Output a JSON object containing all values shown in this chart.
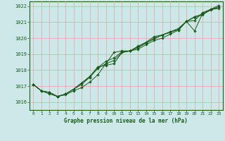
{
  "bg_color": "#cce8e8",
  "grid_color": "#e8a0a0",
  "line_color": "#1a5c1a",
  "title": "Graphe pression niveau de la mer (hPa)",
  "xlim": [
    -0.5,
    23.5
  ],
  "ylim": [
    1015.5,
    1022.3
  ],
  "yticks": [
    1016,
    1017,
    1018,
    1019,
    1020,
    1021,
    1022
  ],
  "xticks": [
    0,
    1,
    2,
    3,
    4,
    5,
    6,
    7,
    8,
    9,
    10,
    11,
    12,
    13,
    14,
    15,
    16,
    17,
    18,
    19,
    20,
    21,
    22,
    23
  ],
  "series": [
    [
      1017.1,
      1016.7,
      1016.5,
      1016.35,
      1016.45,
      1016.7,
      1016.9,
      1017.25,
      1017.7,
      1018.4,
      1019.1,
      1019.2,
      1019.2,
      1019.3,
      1019.6,
      1019.85,
      1020.0,
      1020.25,
      1020.5,
      1021.05,
      1020.45,
      1021.55,
      1021.8,
      1021.85
    ],
    [
      1017.1,
      1016.7,
      1016.6,
      1016.35,
      1016.5,
      1016.8,
      1017.1,
      1017.55,
      1018.15,
      1018.55,
      1018.75,
      1019.15,
      1019.2,
      1019.45,
      1019.7,
      1020.0,
      1020.2,
      1020.4,
      1020.5,
      1021.05,
      1021.1,
      1021.6,
      1021.8,
      1021.95
    ],
    [
      1017.1,
      1016.7,
      1016.6,
      1016.35,
      1016.5,
      1016.8,
      1017.2,
      1017.6,
      1018.2,
      1018.3,
      1018.4,
      1019.1,
      1019.2,
      1019.5,
      1019.75,
      1020.1,
      1020.2,
      1020.4,
      1020.6,
      1021.05,
      1021.35,
      1021.5,
      1021.75,
      1021.95
    ],
    [
      1017.1,
      1016.7,
      1016.6,
      1016.35,
      1016.5,
      1016.8,
      1017.2,
      1017.55,
      1018.1,
      1018.4,
      1018.6,
      1019.1,
      1019.2,
      1019.4,
      1019.7,
      1019.95,
      1020.2,
      1020.35,
      1020.6,
      1021.05,
      1021.3,
      1021.45,
      1021.8,
      1022.05
    ]
  ]
}
